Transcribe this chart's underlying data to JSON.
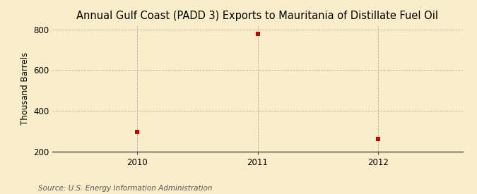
{
  "title": "Annual Gulf Coast (PADD 3) Exports to Mauritania of Distillate Fuel Oil",
  "ylabel": "Thousand Barrels",
  "source": "Source: U.S. Energy Information Administration",
  "x": [
    2010,
    2011,
    2012
  ],
  "y": [
    295,
    778,
    262
  ],
  "xlim": [
    2009.3,
    2012.7
  ],
  "ylim": [
    200,
    820
  ],
  "yticks": [
    200,
    400,
    600,
    800
  ],
  "xticks": [
    2010,
    2011,
    2012
  ],
  "marker_color": "#cc0000",
  "marker_size": 5,
  "background_color": "#faeeca",
  "grid_color": "#aaaaaa",
  "title_fontsize": 10.5,
  "label_fontsize": 8.5,
  "tick_fontsize": 8.5,
  "source_fontsize": 7.5
}
